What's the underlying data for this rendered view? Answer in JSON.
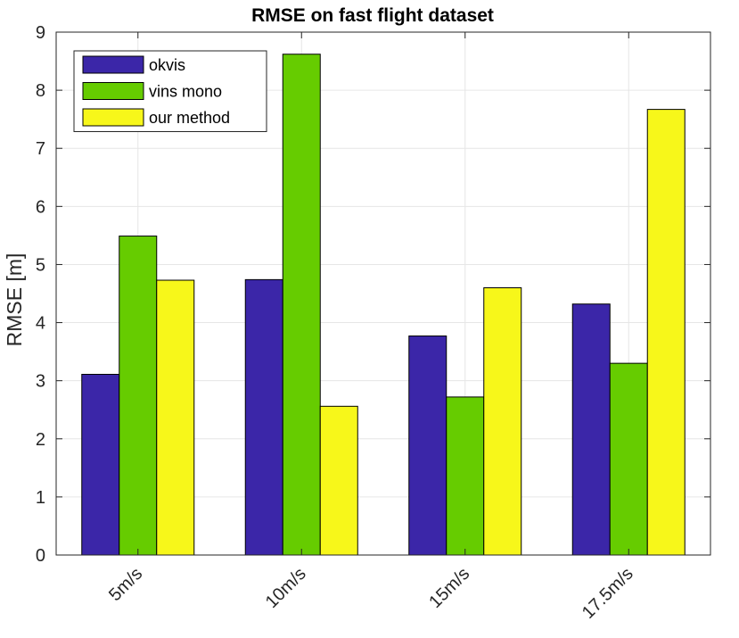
{
  "chart_data": {
    "type": "bar",
    "title": "RMSE on fast flight dataset",
    "xlabel": "",
    "ylabel": "RMSE [m]",
    "categories": [
      "5m/s",
      "10m/s",
      "15m/s",
      "17.5m/s"
    ],
    "series": [
      {
        "name": "okvis",
        "color": "#3b26a8",
        "values": [
          3.11,
          4.74,
          3.77,
          4.32
        ]
      },
      {
        "name": "vins mono",
        "color": "#66cc00",
        "values": [
          5.49,
          8.62,
          2.72,
          3.3
        ]
      },
      {
        "name": "our method",
        "color": "#f7f71a",
        "values": [
          4.73,
          2.56,
          4.6,
          7.67
        ]
      }
    ],
    "ylim": [
      0,
      9
    ],
    "yticks": [
      0,
      1,
      2,
      3,
      4,
      5,
      6,
      7,
      8,
      9
    ],
    "grid": true,
    "legend_position": "top-left"
  }
}
